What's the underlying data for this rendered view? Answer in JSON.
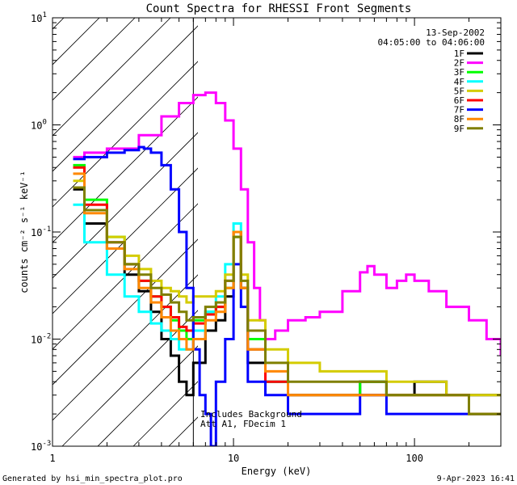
{
  "chart_data": {
    "type": "line",
    "title": "Count Spectra for RHESSI Front Segments",
    "xlabel": "Energy (keV)",
    "ylabel": "counts cm⁻² s⁻¹ keV⁻¹",
    "xscale": "log",
    "yscale": "log",
    "xlim": [
      1,
      300
    ],
    "ylim": [
      0.001,
      10
    ],
    "x_tick_labels": [
      "1",
      "10",
      "100"
    ],
    "y_tick_labels": [
      {
        "base": "10",
        "exp": "-3"
      },
      {
        "base": "10",
        "exp": "-2"
      },
      {
        "base": "10",
        "exp": "-1"
      },
      {
        "base": "10",
        "exp": "0"
      },
      {
        "base": "10",
        "exp": "1"
      }
    ],
    "date": "13-Sep-2002",
    "time_range": "04:05:00 to 04:06:00",
    "hatched_region_keV": [
      1,
      6
    ],
    "annotation_lines": [
      "Includes Background",
      "Att A1, FDecim 1"
    ],
    "footer_left": "Generated by hsi_min_spectra_plot.pro",
    "footer_right": "9-Apr-2023 16:41",
    "series": [
      {
        "name": "1F",
        "color": "#000000",
        "x": [
          1.3,
          1.5,
          2,
          2.5,
          3,
          3.5,
          4,
          4.5,
          5,
          5.5,
          6,
          7,
          8,
          9,
          10,
          11,
          12,
          15,
          20,
          30,
          50,
          70,
          100,
          150,
          200,
          300
        ],
        "y": [
          0.25,
          0.12,
          0.07,
          0.04,
          0.028,
          0.018,
          0.01,
          0.007,
          0.004,
          0.003,
          0.006,
          0.012,
          0.015,
          0.025,
          0.1,
          0.03,
          0.006,
          0.004,
          0.003,
          0.003,
          0.004,
          0.003,
          0.004,
          0.003,
          0.003,
          0.003
        ]
      },
      {
        "name": "2F",
        "color": "#ff00ff",
        "x": [
          1.3,
          1.5,
          2,
          3,
          4,
          5,
          6,
          7,
          8,
          9,
          10,
          11,
          12,
          13,
          14,
          15,
          17,
          20,
          25,
          30,
          40,
          50,
          55,
          60,
          70,
          80,
          90,
          100,
          120,
          150,
          200,
          250,
          300
        ],
        "y": [
          0.5,
          0.55,
          0.6,
          0.8,
          1.2,
          1.6,
          1.9,
          2.0,
          1.6,
          1.1,
          0.6,
          0.25,
          0.08,
          0.03,
          0.015,
          0.01,
          0.012,
          0.015,
          0.016,
          0.018,
          0.028,
          0.042,
          0.048,
          0.04,
          0.03,
          0.035,
          0.04,
          0.035,
          0.028,
          0.02,
          0.015,
          0.01,
          0.007
        ]
      },
      {
        "name": "3F",
        "color": "#00ff00",
        "x": [
          1.3,
          1.5,
          2,
          2.5,
          3,
          3.5,
          4,
          4.5,
          5,
          5.5,
          6,
          7,
          8,
          9,
          10,
          11,
          12,
          15,
          20,
          30,
          50,
          70,
          100,
          150,
          200,
          300
        ],
        "y": [
          0.42,
          0.2,
          0.09,
          0.05,
          0.035,
          0.025,
          0.02,
          0.015,
          0.012,
          0.01,
          0.015,
          0.018,
          0.02,
          0.03,
          0.09,
          0.03,
          0.01,
          0.004,
          0.003,
          0.003,
          0.004,
          0.003,
          0.003,
          0.003,
          0.002,
          0.002
        ]
      },
      {
        "name": "4F",
        "color": "#00ffff",
        "x": [
          1.3,
          1.5,
          2,
          2.5,
          3,
          3.5,
          4,
          4.5,
          5,
          5.5,
          6,
          7,
          8,
          9,
          10,
          11,
          12,
          15,
          20,
          30,
          50,
          70,
          100,
          150,
          200,
          300
        ],
        "y": [
          0.18,
          0.08,
          0.04,
          0.025,
          0.018,
          0.014,
          0.012,
          0.01,
          0.008,
          0.008,
          0.012,
          0.018,
          0.025,
          0.05,
          0.12,
          0.03,
          0.008,
          0.004,
          0.003,
          0.003,
          0.003,
          0.003,
          0.003,
          0.003,
          0.002,
          0.002
        ]
      },
      {
        "name": "5F",
        "color": "#d4cc00",
        "x": [
          1.3,
          1.5,
          2,
          2.5,
          3,
          3.5,
          4,
          4.5,
          5,
          5.5,
          6,
          7,
          8,
          9,
          10,
          11,
          12,
          15,
          20,
          30,
          50,
          70,
          100,
          150,
          200,
          300
        ],
        "y": [
          0.3,
          0.16,
          0.09,
          0.06,
          0.045,
          0.035,
          0.03,
          0.028,
          0.025,
          0.022,
          0.025,
          0.025,
          0.028,
          0.04,
          0.1,
          0.04,
          0.015,
          0.008,
          0.006,
          0.005,
          0.005,
          0.004,
          0.004,
          0.003,
          0.003,
          0.003
        ]
      },
      {
        "name": "6F",
        "color": "#ff0000",
        "x": [
          1.3,
          1.5,
          2,
          2.5,
          3,
          3.5,
          4,
          4.5,
          5,
          5.5,
          6,
          7,
          8,
          9,
          10,
          11,
          12,
          15,
          20,
          30,
          50,
          70,
          100,
          150,
          200,
          300
        ],
        "y": [
          0.4,
          0.18,
          0.08,
          0.05,
          0.035,
          0.025,
          0.02,
          0.016,
          0.013,
          0.012,
          0.014,
          0.017,
          0.02,
          0.035,
          0.1,
          0.03,
          0.008,
          0.004,
          0.003,
          0.003,
          0.003,
          0.003,
          0.003,
          0.003,
          0.002,
          0.002
        ]
      },
      {
        "name": "7F",
        "color": "#0000ff",
        "x": [
          1.3,
          1.5,
          2,
          2.5,
          3,
          3.2,
          3.5,
          4,
          4.5,
          5,
          5.5,
          6,
          6.5,
          7,
          7.5,
          8,
          9,
          10,
          11,
          12,
          15,
          20,
          30,
          50,
          70,
          100,
          150,
          200,
          300
        ],
        "y": [
          0.48,
          0.5,
          0.55,
          0.58,
          0.62,
          0.6,
          0.55,
          0.42,
          0.25,
          0.1,
          0.03,
          0.008,
          0.003,
          0.002,
          0.001,
          0.004,
          0.01,
          0.05,
          0.02,
          0.004,
          0.003,
          0.002,
          0.002,
          0.003,
          0.002,
          0.002,
          0.002,
          0.002,
          0.002
        ]
      },
      {
        "name": "8F",
        "color": "#ff8800",
        "x": [
          1.3,
          1.5,
          2,
          2.5,
          3,
          3.5,
          4,
          4.5,
          5,
          5.5,
          6,
          7,
          8,
          9,
          10,
          11,
          12,
          15,
          20,
          30,
          50,
          70,
          100,
          150,
          200,
          300
        ],
        "y": [
          0.35,
          0.15,
          0.07,
          0.045,
          0.03,
          0.022,
          0.016,
          0.012,
          0.01,
          0.008,
          0.01,
          0.015,
          0.018,
          0.03,
          0.1,
          0.03,
          0.008,
          0.005,
          0.003,
          0.003,
          0.003,
          0.003,
          0.003,
          0.003,
          0.002,
          0.002
        ]
      },
      {
        "name": "9F",
        "color": "#7f7f00",
        "x": [
          1.3,
          1.5,
          2,
          2.5,
          3,
          3.5,
          4,
          4.5,
          5,
          5.5,
          6,
          7,
          8,
          9,
          10,
          11,
          12,
          15,
          20,
          30,
          50,
          70,
          100,
          150,
          200,
          300
        ],
        "y": [
          0.26,
          0.16,
          0.08,
          0.05,
          0.04,
          0.03,
          0.026,
          0.022,
          0.018,
          0.015,
          0.016,
          0.02,
          0.022,
          0.035,
          0.09,
          0.035,
          0.012,
          0.006,
          0.004,
          0.004,
          0.004,
          0.003,
          0.003,
          0.003,
          0.002,
          0.002
        ]
      }
    ]
  }
}
